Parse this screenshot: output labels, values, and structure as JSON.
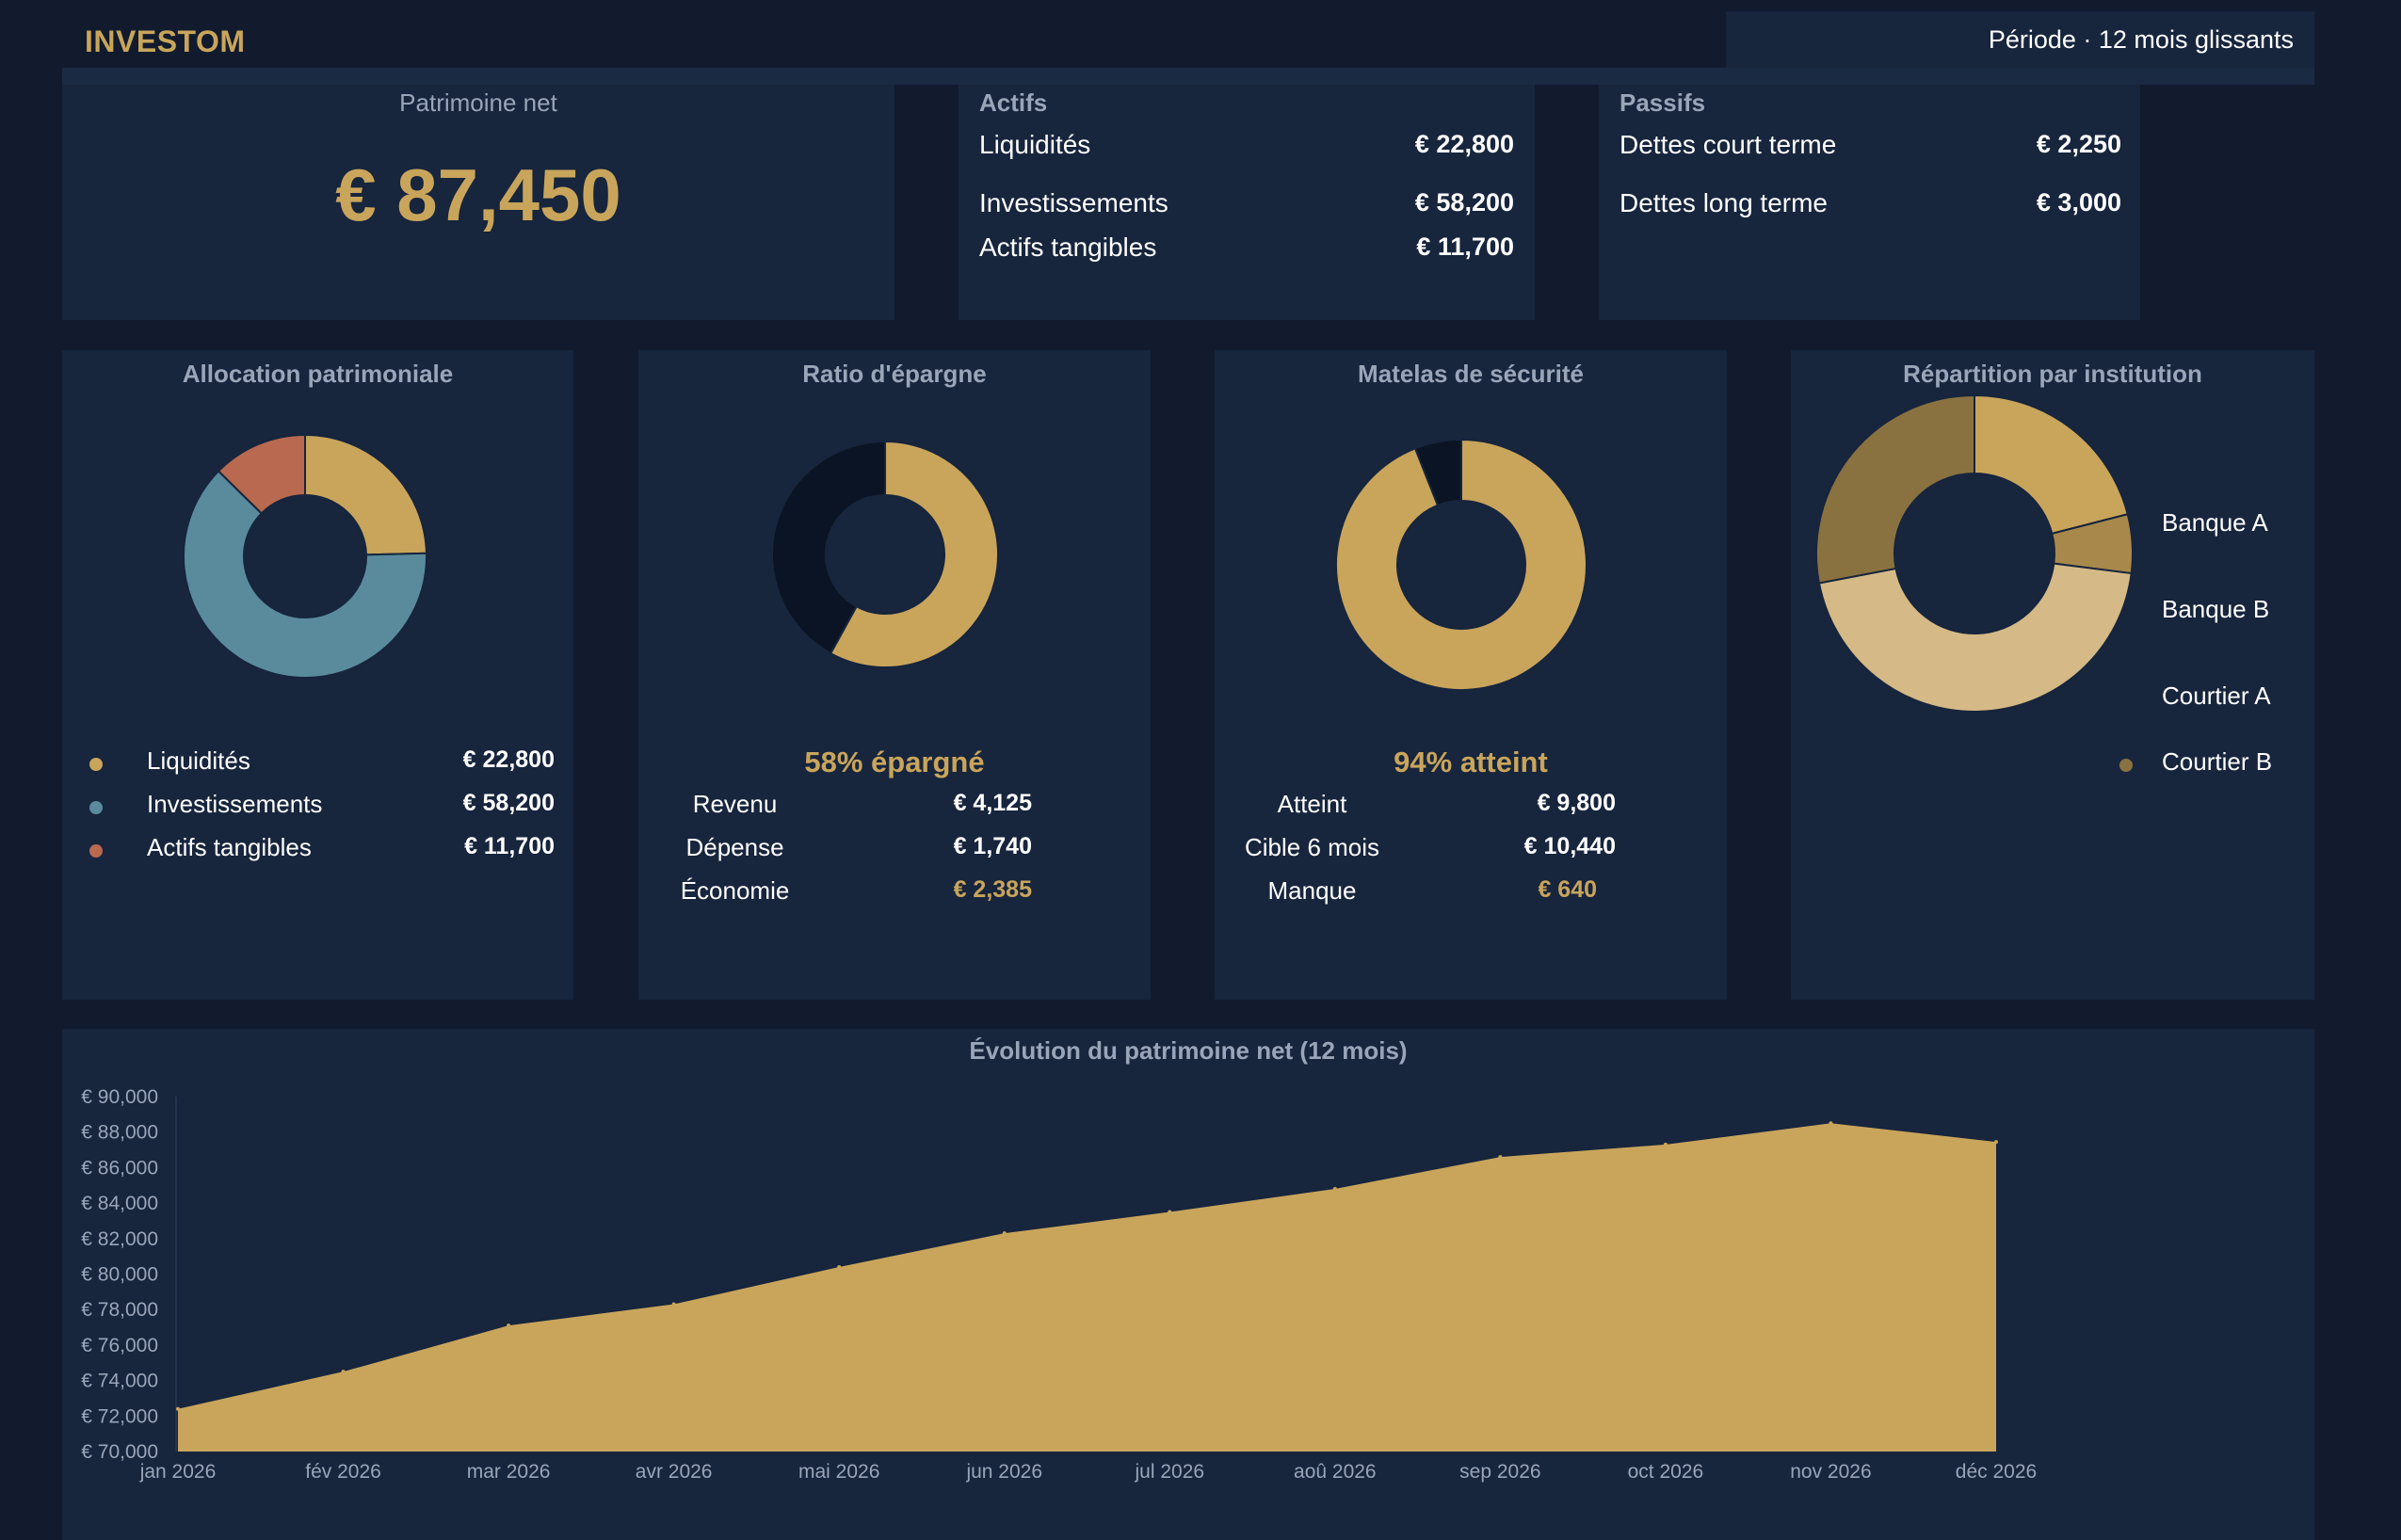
{
  "header": {
    "brand": "INVESTOM",
    "period": "Période · 12 mois glissants"
  },
  "net_worth": {
    "label": "Patrimoine net",
    "value": "€ 87,450"
  },
  "assets": {
    "title": "Actifs",
    "rows": [
      {
        "label": "Liquidités",
        "value": "€ 22,800"
      },
      {
        "label": "Investissements",
        "value": "€ 58,200"
      },
      {
        "label": "Actifs tangibles",
        "value": "€ 11,700"
      }
    ]
  },
  "liabilities": {
    "title": "Passifs",
    "rows": [
      {
        "label": "Dettes court terme",
        "value": "€ 2,250"
      },
      {
        "label": "Dettes long terme",
        "value": "€ 3,000"
      }
    ]
  },
  "allocation": {
    "title": "Allocation patrimoniale",
    "items": [
      {
        "label": "Liquidités",
        "value": "€ 22,800",
        "amount": 22800,
        "color": "#c9a55b"
      },
      {
        "label": "Investissements",
        "value": "€ 58,200",
        "amount": 58200,
        "color": "#5a8b9c"
      },
      {
        "label": "Actifs tangibles",
        "value": "€ 11,700",
        "amount": 11700,
        "color": "#b9694f"
      }
    ]
  },
  "savings": {
    "title": "Ratio d'épargne",
    "headline": "58% épargné",
    "ratio": 0.58,
    "rows": [
      {
        "label": "Revenu",
        "value": "€ 4,125"
      },
      {
        "label": "Dépense",
        "value": "€ 1,740"
      },
      {
        "label": "Économie",
        "value": "€ 2,385"
      }
    ],
    "colors": {
      "filled": "#c9a55b",
      "rest": "#0b1424"
    }
  },
  "safety": {
    "title": "Matelas de sécurité",
    "headline": "94% atteint",
    "ratio": 0.94,
    "rows": [
      {
        "label": "Atteint",
        "value": "€ 9,800"
      },
      {
        "label": "Cible 6 mois",
        "value": "€ 10,440"
      },
      {
        "label": "Manque",
        "value": "€ 640"
      }
    ],
    "colors": {
      "filled": "#c9a55b",
      "rest": "#0b1424"
    }
  },
  "institutions": {
    "title": "Répartition par institution",
    "items": [
      {
        "label": "Banque A",
        "share": 0.21,
        "color": "#c9a55b"
      },
      {
        "label": "Banque B",
        "share": 0.06,
        "color": "#a8894b"
      },
      {
        "label": "Courtier A",
        "share": 0.45,
        "color": "#d5b986"
      },
      {
        "label": "Courtier B",
        "share": 0.28,
        "color": "#8a7240"
      }
    ]
  },
  "chart_data": {
    "type": "area",
    "title": "Évolution du patrimoine net (12 mois)",
    "x": [
      "jan 2026",
      "fév 2026",
      "mar 2026",
      "avr 2026",
      "mai 2026",
      "jun 2026",
      "jul 2026",
      "aoû 2026",
      "sep 2026",
      "oct 2026",
      "nov 2026",
      "déc 2026"
    ],
    "values": [
      72400,
      74500,
      77100,
      78300,
      80400,
      82300,
      83500,
      84800,
      86600,
      87300,
      88500,
      87450
    ],
    "ylim": [
      70000,
      90000
    ],
    "yticks": [
      "€ 70,000",
      "€ 72,000",
      "€ 74,000",
      "€ 76,000",
      "€ 78,000",
      "€ 80,000",
      "€ 82,000",
      "€ 84,000",
      "€ 86,000",
      "€ 88,000",
      "€ 90,000"
    ],
    "color": "#c9a55b",
    "grid": false
  }
}
